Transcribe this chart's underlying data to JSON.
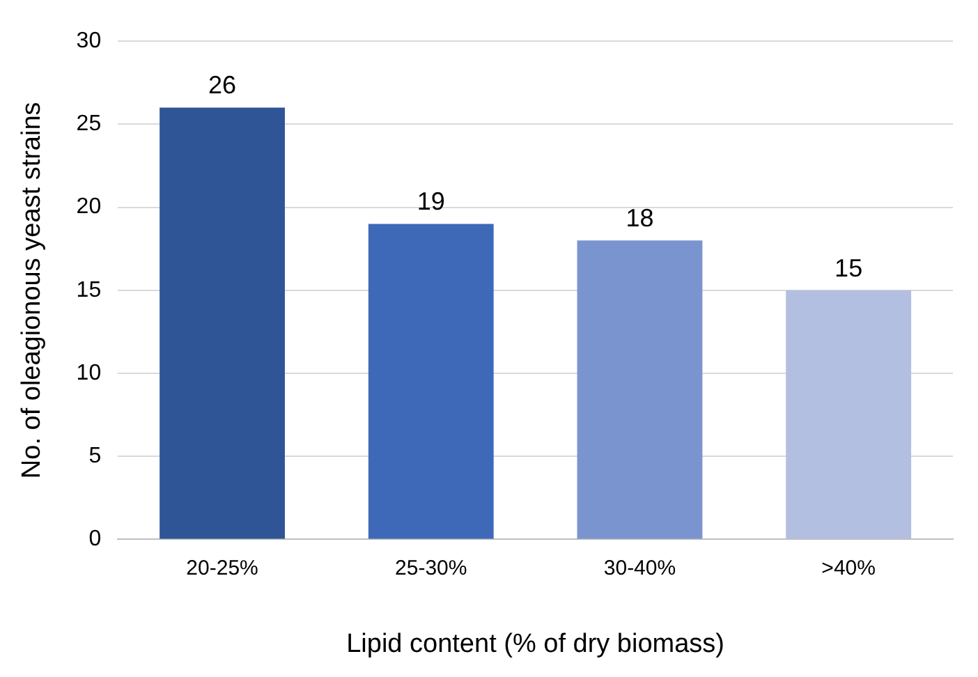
{
  "chart_data": {
    "type": "bar",
    "xlabel": "Lipid content (% of dry biomass)",
    "ylabel": "No. of oleagionous yeast strains",
    "categories": [
      "20-25%",
      "25-30%",
      "30-40%",
      ">40%"
    ],
    "values": [
      26,
      19,
      18,
      15
    ],
    "colors": [
      "#2f5597",
      "#3e69b8",
      "#7a94d0",
      "#b2bfe0"
    ],
    "ylim": [
      0,
      30
    ],
    "yticks": [
      0,
      5,
      10,
      15,
      20,
      25,
      30
    ],
    "grid": "y",
    "data_labels": true
  }
}
